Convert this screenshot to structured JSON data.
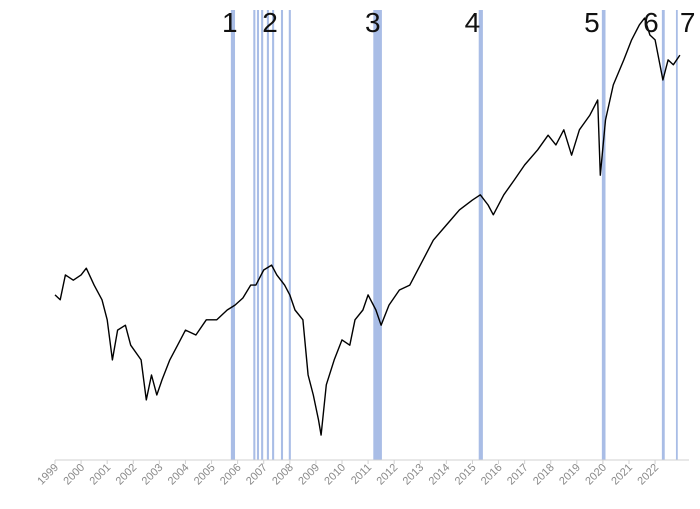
{
  "chart_data": {
    "type": "line",
    "xlim": [
      1999,
      2023.3
    ],
    "ylim": [
      0,
      100
    ],
    "xticks": [
      1999,
      2000,
      2001,
      2002,
      2003,
      2004,
      2005,
      2006,
      2007,
      2008,
      2009,
      2010,
      2011,
      2012,
      2013,
      2014,
      2015,
      2016,
      2017,
      2018,
      2019,
      2020,
      2021,
      2022
    ],
    "band_color": "#a9bde6",
    "bands": [
      [
        2005.74,
        2005.9
      ],
      [
        2006.6,
        2006.68
      ],
      [
        2006.74,
        2006.82
      ],
      [
        2006.9,
        2006.98
      ],
      [
        2007.12,
        2007.2
      ],
      [
        2007.32,
        2007.4
      ],
      [
        2007.66,
        2007.74
      ],
      [
        2007.96,
        2008.04
      ],
      [
        2011.2,
        2011.53
      ],
      [
        2015.24,
        2015.4
      ],
      [
        2019.96,
        2020.1
      ],
      [
        2022.26,
        2022.37
      ],
      [
        2022.8,
        2022.87
      ]
    ],
    "annotations": [
      {
        "label": "1",
        "x": 2005.7
      },
      {
        "label": "2",
        "x": 2007.24
      },
      {
        "label": "3",
        "x": 2011.18
      },
      {
        "label": "4",
        "x": 2015.0
      },
      {
        "label": "5",
        "x": 2019.58
      },
      {
        "label": "6",
        "x": 2021.84
      },
      {
        "label": "7",
        "x": 2023.25
      }
    ],
    "series": [
      {
        "color": "#000000",
        "x": [
          1999.0,
          1999.2,
          1999.4,
          1999.7,
          2000.0,
          2000.2,
          2000.5,
          2000.8,
          2001.0,
          2001.2,
          2001.4,
          2001.7,
          2001.9,
          2002.3,
          2002.5,
          2002.7,
          2002.9,
          2003.1,
          2003.4,
          2003.7,
          2004.0,
          2004.4,
          2004.8,
          2005.2,
          2005.6,
          2005.9,
          2006.2,
          2006.5,
          2006.7,
          2007.0,
          2007.3,
          2007.5,
          2007.8,
          2008.0,
          2008.2,
          2008.5,
          2008.7,
          2008.9,
          2009.1,
          2009.2,
          2009.4,
          2009.7,
          2010.0,
          2010.3,
          2010.5,
          2010.8,
          2011.0,
          2011.3,
          2011.5,
          2011.8,
          2012.2,
          2012.6,
          2013.0,
          2013.5,
          2014.0,
          2014.5,
          2015.0,
          2015.3,
          2015.6,
          2015.8,
          2016.2,
          2016.6,
          2017.0,
          2017.5,
          2017.9,
          2018.2,
          2018.5,
          2018.8,
          2019.1,
          2019.5,
          2019.8,
          2019.9,
          2020.1,
          2020.4,
          2020.8,
          2021.1,
          2021.4,
          2021.6,
          2021.8,
          2022.0,
          2022.3,
          2022.5,
          2022.7,
          2022.95
        ],
        "values": [
          37.1,
          36.0,
          41.6,
          40.4,
          41.6,
          43.1,
          39.3,
          36.0,
          31.5,
          22.5,
          29.2,
          30.3,
          25.8,
          22.5,
          13.5,
          19.1,
          14.6,
          18.0,
          22.5,
          25.8,
          29.2,
          28.1,
          31.5,
          31.5,
          33.7,
          34.8,
          36.4,
          39.3,
          39.3,
          42.7,
          43.8,
          41.6,
          39.3,
          37.1,
          33.7,
          31.5,
          19.1,
          14.6,
          9.0,
          5.6,
          16.9,
          22.5,
          27.0,
          25.8,
          31.5,
          33.7,
          37.1,
          33.7,
          30.3,
          34.8,
          38.2,
          39.3,
          43.8,
          49.4,
          52.8,
          56.2,
          58.4,
          59.6,
          57.3,
          55.1,
          59.6,
          62.9,
          66.3,
          69.7,
          73.0,
          70.8,
          74.2,
          68.5,
          74.2,
          77.5,
          80.9,
          64.0,
          76.4,
          84.3,
          89.9,
          94.4,
          97.8,
          99.3,
          95.5,
          94.4,
          85.4,
          89.9,
          88.8,
          91.0
        ]
      }
    ]
  }
}
